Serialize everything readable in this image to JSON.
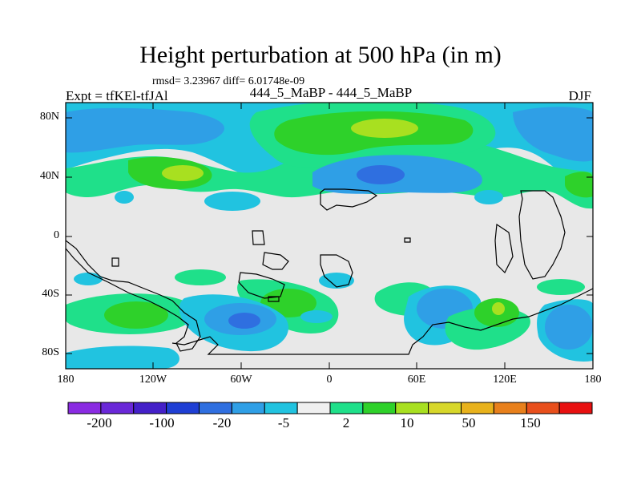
{
  "title": "Height perturbation at 500 hPa (in m)",
  "stats_line": "rmsd= 3.23967 diff= 6.01748e-09",
  "left_label": "Expt = tfKEl-tfJAl",
  "center_label": "444_5_MaBP - 444_5_MaBP",
  "right_label": "DJF",
  "y_ticks": [
    "80N",
    "40N",
    "0",
    "40S",
    "80S"
  ],
  "x_ticks": [
    "180",
    "120W",
    "60W",
    "0",
    "60E",
    "120E",
    "180"
  ],
  "colorbar": {
    "colors": [
      "#8a2be2",
      "#6a28d8",
      "#4420c8",
      "#1f3fd4",
      "#2f6fe0",
      "#2f9fe6",
      "#21c3e0",
      "#f0f0f0",
      "#1fe08a",
      "#2ed12a",
      "#a8e020",
      "#d7d72a",
      "#e8b21c",
      "#e8801c",
      "#e84f1c",
      "#e81010"
    ],
    "labels": [
      "-200",
      "-100",
      "-20",
      "-5",
      "2",
      "10",
      "50",
      "150"
    ]
  }
}
